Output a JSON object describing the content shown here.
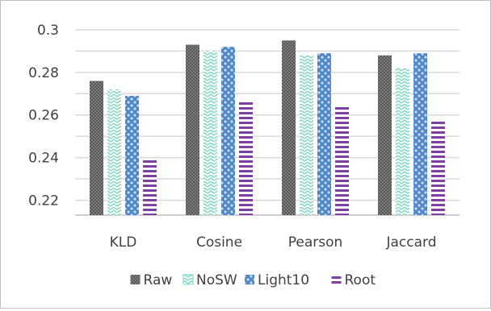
{
  "chart_data": {
    "type": "bar",
    "categories": [
      "KLD",
      "Cosine",
      "Pearson",
      "Jaccard"
    ],
    "series": [
      {
        "name": "Raw",
        "values": [
          0.276,
          0.293,
          0.295,
          0.288
        ]
      },
      {
        "name": "NoSW",
        "values": [
          0.272,
          0.29,
          0.288,
          0.282
        ]
      },
      {
        "name": "Light10",
        "values": [
          0.269,
          0.292,
          0.289,
          0.289
        ]
      },
      {
        "name": "Root",
        "values": [
          0.239,
          0.266,
          0.264,
          0.257
        ]
      }
    ],
    "yticks": [
      "0.22",
      "0.24",
      "0.26",
      "0.28",
      "0.3"
    ],
    "title": "",
    "xlabel": "",
    "ylabel": "",
    "ylim": [
      0.213,
      0.3
    ],
    "grid": true,
    "legend_position": "bottom",
    "colors": {
      "Raw": "#6b6b6b",
      "NoSW": "#7fd6c0",
      "Light10": "#4f86c6",
      "Root": "#7e3fa2"
    }
  }
}
